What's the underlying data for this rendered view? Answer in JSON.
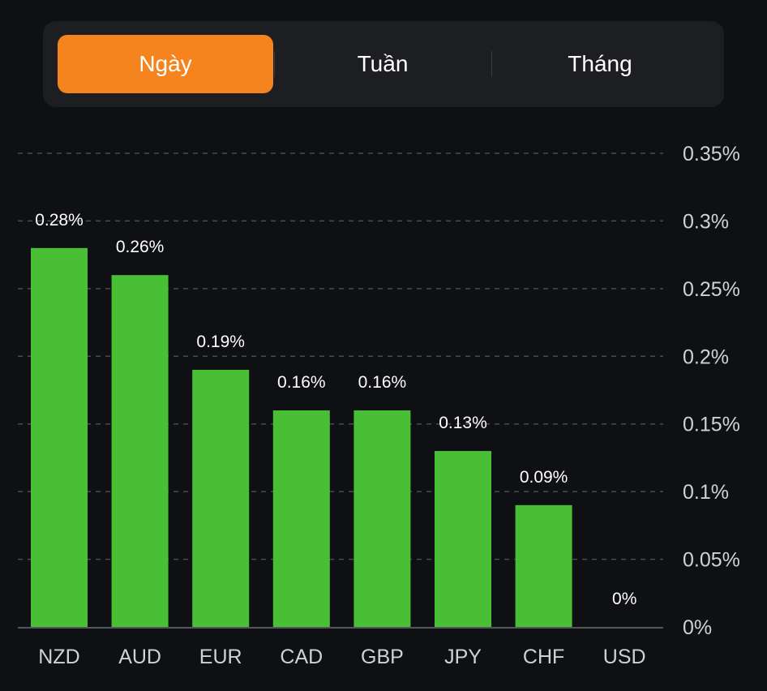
{
  "tabs": {
    "items": [
      {
        "label": "Ngày",
        "active": true
      },
      {
        "label": "Tuần",
        "active": false
      },
      {
        "label": "Tháng",
        "active": false
      }
    ]
  },
  "colors": {
    "bar": "#48bf34",
    "active_tab": "#f5841f",
    "background": "#0f1013",
    "panel": "#1d1e22",
    "grid": "#4a4b50",
    "axis": "#55565b"
  },
  "chart_data": {
    "type": "bar",
    "title": "",
    "xlabel": "",
    "ylabel": "",
    "categories": [
      "NZD",
      "AUD",
      "EUR",
      "CAD",
      "GBP",
      "JPY",
      "CHF",
      "USD"
    ],
    "values": [
      0.28,
      0.26,
      0.19,
      0.16,
      0.16,
      0.13,
      0.09,
      0
    ],
    "data_labels": [
      "0.28%",
      "0.26%",
      "0.19%",
      "0.16%",
      "0.16%",
      "0.13%",
      "0.09%",
      "0%"
    ],
    "unit": "%",
    "ylim": [
      0,
      0.35
    ],
    "yticks": [
      0,
      0.05,
      0.1,
      0.15,
      0.2,
      0.25,
      0.3,
      0.35
    ],
    "ytick_labels": [
      "0%",
      "0.05%",
      "0.1%",
      "0.15%",
      "0.2%",
      "0.25%",
      "0.3%",
      "0.35%"
    ],
    "y_axis_position": "right",
    "grid": true,
    "grid_style": "dashed",
    "legend": "none"
  }
}
